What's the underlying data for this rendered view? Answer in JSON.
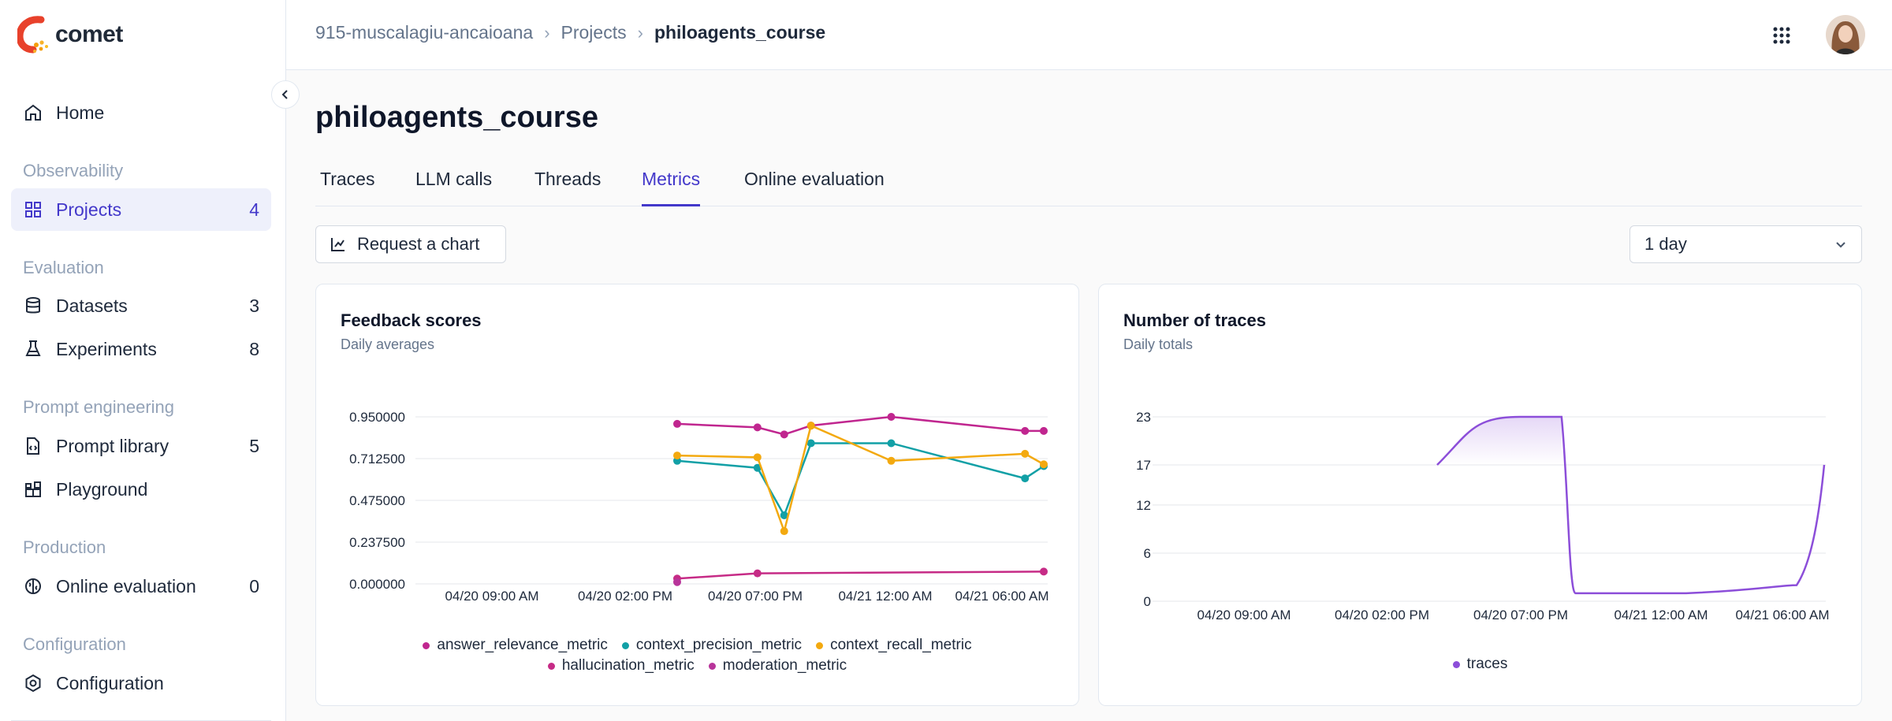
{
  "app": {
    "name": "comet"
  },
  "sidebar": {
    "home": "Home",
    "sections": {
      "observability": "Observability",
      "evaluation": "Evaluation",
      "prompt_engineering": "Prompt engineering",
      "production": "Production",
      "configuration": "Configuration"
    },
    "items": [
      {
        "label": "Projects",
        "count": "4",
        "icon": "grid-icon"
      },
      {
        "label": "Datasets",
        "count": "3",
        "icon": "database-icon"
      },
      {
        "label": "Experiments",
        "count": "8",
        "icon": "flask-icon"
      },
      {
        "label": "Prompt library",
        "count": "5",
        "icon": "file-code-icon"
      },
      {
        "label": "Playground",
        "count": "",
        "icon": "blocks-icon"
      },
      {
        "label": "Online evaluation",
        "count": "0",
        "icon": "brain-icon"
      },
      {
        "label": "Configuration",
        "count": "",
        "icon": "gear-icon"
      }
    ]
  },
  "breadcrumb": {
    "workspace": "915-muscalagiu-ancaioana",
    "projects": "Projects",
    "current": "philoagents_course"
  },
  "page": {
    "title": "philoagents_course"
  },
  "tabs": [
    "Traces",
    "LLM calls",
    "Threads",
    "Metrics",
    "Online evaluation"
  ],
  "active_tab": "Metrics",
  "toolbar": {
    "request_chart": "Request a chart",
    "range": "1 day"
  },
  "colors": {
    "accent": "#4338ca",
    "answer_relevance_metric": "#c0268f",
    "context_precision_metric": "#12a0a6",
    "context_recall_metric": "#f3a90f",
    "hallucination_metric": "#c62b86",
    "moderation_metric": "#b8349a",
    "traces": "#8c4ed9"
  },
  "chart_data": [
    {
      "type": "line",
      "title": "Feedback scores",
      "subtitle": "Daily averages",
      "x_ticks": [
        "04/20 09:00 AM",
        "04/20 02:00 PM",
        "04/20 07:00 PM",
        "04/21 12:00 AM",
        "04/21 06:00 AM"
      ],
      "y_ticks": [
        "0.000000",
        "0.237500",
        "0.475000",
        "0.712500",
        "0.950000"
      ],
      "ylim": [
        0,
        0.95
      ],
      "series": [
        {
          "name": "answer_relevance_metric",
          "x": [
            15.0,
            18.0,
            19.0,
            20.0,
            23.0,
            28.0,
            28.7
          ],
          "y": [
            0.91,
            0.89,
            0.85,
            0.9,
            0.95,
            0.87,
            0.87
          ]
        },
        {
          "name": "context_precision_metric",
          "x": [
            15.0,
            18.0,
            19.0,
            20.0,
            23.0,
            28.0,
            28.7
          ],
          "y": [
            0.7,
            0.66,
            0.39,
            0.8,
            0.8,
            0.6,
            0.67
          ]
        },
        {
          "name": "context_recall_metric",
          "x": [
            15.0,
            18.0,
            19.0,
            20.0,
            23.0,
            28.0,
            28.7
          ],
          "y": [
            0.73,
            0.72,
            0.3,
            0.9,
            0.7,
            0.74,
            0.68
          ]
        },
        {
          "name": "hallucination_metric",
          "x": [
            15.0,
            18.0,
            28.7
          ],
          "y": [
            0.03,
            0.06,
            0.07
          ]
        },
        {
          "name": "moderation_metric",
          "x": [
            15.0
          ],
          "y": [
            0.01
          ]
        }
      ],
      "grid": true,
      "legend": "bottom"
    },
    {
      "type": "area",
      "title": "Number of traces",
      "subtitle": "Daily totals",
      "x_ticks": [
        "04/20 09:00 AM",
        "04/20 02:00 PM",
        "04/20 07:00 PM",
        "04/21 12:00 AM",
        "04/21 06:00 AM"
      ],
      "y_ticks": [
        "0",
        "6",
        "12",
        "17",
        "23"
      ],
      "ylim": [
        0,
        23
      ],
      "series": [
        {
          "name": "traces",
          "x": [
            15.0,
            18.0,
            19.5,
            20.0,
            28.0,
            29.0
          ],
          "y": [
            17,
            23,
            23,
            1,
            2,
            17
          ]
        }
      ],
      "grid": true,
      "legend": "bottom"
    }
  ]
}
